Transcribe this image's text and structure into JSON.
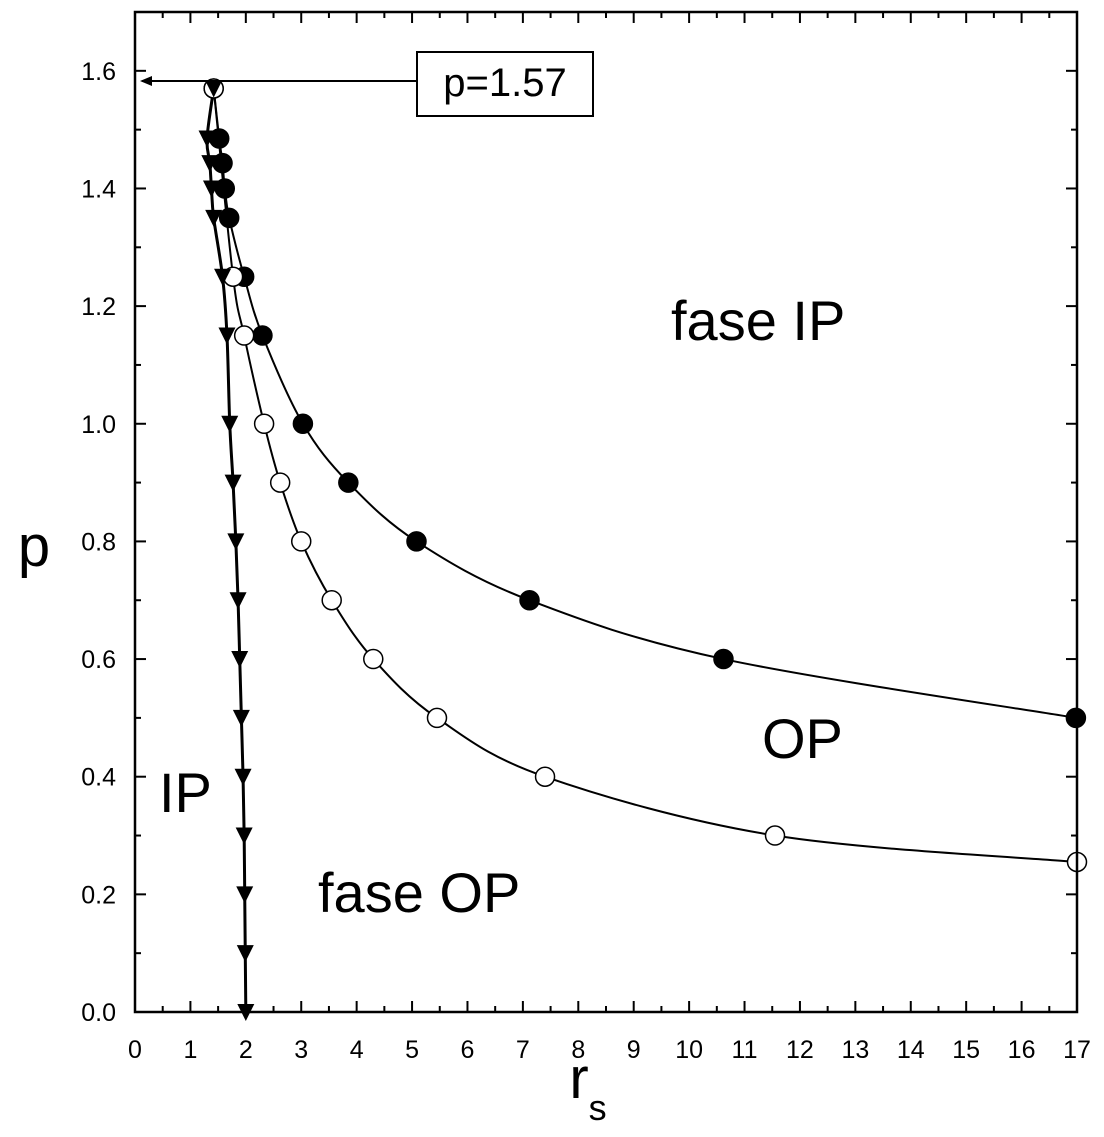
{
  "chart_data": {
    "type": "scatter",
    "xlabel": "r",
    "xlabel_sub": "s",
    "ylabel": "p",
    "xlim": [
      0,
      17
    ],
    "ylim": [
      0,
      1.7
    ],
    "x_ticks": [
      "0",
      "1",
      "2",
      "3",
      "4",
      "5",
      "6",
      "7",
      "8",
      "9",
      "10",
      "11",
      "12",
      "13",
      "14",
      "15",
      "16",
      "17"
    ],
    "y_ticks": [
      "0.0",
      "0.2",
      "0.4",
      "0.6",
      "0.8",
      "1.0",
      "1.2",
      "1.4",
      "1.6"
    ],
    "series": [
      {
        "marker": "circle-filled",
        "points": [
          [
            1.42,
            1.57
          ],
          [
            1.52,
            1.485
          ],
          [
            1.58,
            1.443
          ],
          [
            1.62,
            1.4
          ],
          [
            1.7,
            1.35
          ],
          [
            1.97,
            1.25
          ],
          [
            2.3,
            1.15
          ],
          [
            3.03,
            1.0
          ],
          [
            3.85,
            0.9
          ],
          [
            5.08,
            0.8
          ],
          [
            7.12,
            0.7
          ],
          [
            10.62,
            0.6
          ],
          [
            16.98,
            0.5
          ]
        ]
      },
      {
        "marker": "circle-open",
        "points": [
          [
            1.42,
            1.57
          ],
          [
            1.77,
            1.25
          ],
          [
            1.97,
            1.15
          ],
          [
            2.33,
            1.0
          ],
          [
            2.62,
            0.9
          ],
          [
            3.0,
            0.8
          ],
          [
            3.55,
            0.7
          ],
          [
            4.3,
            0.6
          ],
          [
            5.45,
            0.5
          ],
          [
            7.4,
            0.4
          ],
          [
            11.55,
            0.3
          ],
          [
            17.0,
            0.255
          ]
        ]
      },
      {
        "marker": "triangle-down-filled",
        "points": [
          [
            1.42,
            1.57
          ],
          [
            1.3,
            1.485
          ],
          [
            1.35,
            1.443
          ],
          [
            1.38,
            1.4
          ],
          [
            1.42,
            1.35
          ],
          [
            1.58,
            1.25
          ],
          [
            1.66,
            1.15
          ],
          [
            1.71,
            1.0
          ],
          [
            1.77,
            0.9
          ],
          [
            1.82,
            0.8
          ],
          [
            1.86,
            0.7
          ],
          [
            1.89,
            0.6
          ],
          [
            1.92,
            0.5
          ],
          [
            1.95,
            0.4
          ],
          [
            1.97,
            0.3
          ],
          [
            1.98,
            0.2
          ],
          [
            1.99,
            0.1
          ],
          [
            2.0,
            0.0
          ]
        ]
      }
    ],
    "annotations": {
      "callout": "p=1.57",
      "callout_value": 1.57,
      "region_fase_ip": "fase IP",
      "region_op": "OP",
      "region_ip": "IP",
      "region_fase_op": "fase OP"
    }
  }
}
